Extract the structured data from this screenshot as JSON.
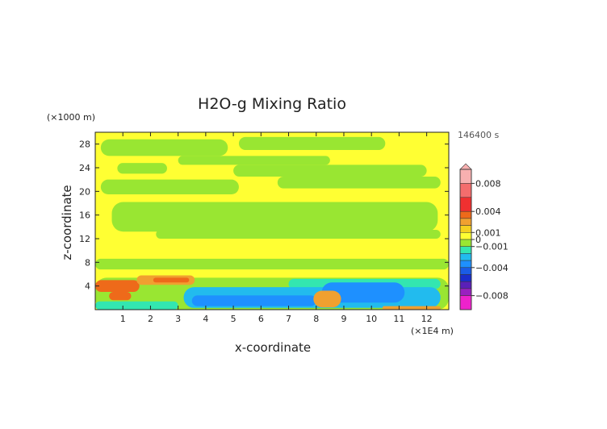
{
  "chart_data": {
    "type": "heatmap",
    "title": "H2O-g Mixing Ratio",
    "time_label": "146400 s",
    "xlabel": "x-coordinate",
    "ylabel": "z-coordinate",
    "x_unit": "(×1E4 m)",
    "y_unit": "(×1000 m)",
    "xlim": [
      0,
      12.8
    ],
    "ylim": [
      0,
      30
    ],
    "x_ticks": [
      1,
      2,
      3,
      4,
      5,
      6,
      7,
      8,
      9,
      10,
      11,
      12
    ],
    "y_ticks": [
      4,
      8,
      12,
      16,
      20,
      24,
      28
    ],
    "colorbar": {
      "range": [
        -0.01,
        0.01
      ],
      "tick_values": [
        0.008,
        0.004,
        0.001,
        0,
        -0.001,
        -0.004,
        -0.008
      ],
      "tick_labels": [
        "0.008",
        "0.004",
        "0.001",
        "0",
        "−0.001",
        "−0.004",
        "−0.008"
      ],
      "levels": [
        {
          "lo": 0.008,
          "hi": 0.01,
          "color": "#f7b0b0"
        },
        {
          "lo": 0.006,
          "hi": 0.008,
          "color": "#f46d6d"
        },
        {
          "lo": 0.004,
          "hi": 0.006,
          "color": "#f03030"
        },
        {
          "lo": 0.003,
          "hi": 0.004,
          "color": "#ee6a1a"
        },
        {
          "lo": 0.002,
          "hi": 0.003,
          "color": "#f0a030"
        },
        {
          "lo": 0.001,
          "hi": 0.002,
          "color": "#f5d020"
        },
        {
          "lo": 0.0,
          "hi": 0.001,
          "color": "#ffff33"
        },
        {
          "lo": -0.001,
          "hi": 0.0,
          "color": "#99e632"
        },
        {
          "lo": -0.002,
          "hi": -0.001,
          "color": "#33e6b0"
        },
        {
          "lo": -0.003,
          "hi": -0.002,
          "color": "#22bbee"
        },
        {
          "lo": -0.004,
          "hi": -0.003,
          "color": "#1e90ff"
        },
        {
          "lo": -0.005,
          "hi": -0.004,
          "color": "#1a5ce6"
        },
        {
          "lo": -0.006,
          "hi": -0.005,
          "color": "#1a2ecc"
        },
        {
          "lo": -0.007,
          "hi": -0.006,
          "color": "#5a20b8"
        },
        {
          "lo": -0.008,
          "hi": -0.007,
          "color": "#9a20c0"
        },
        {
          "lo": -0.01,
          "hi": -0.008,
          "color": "#ee22cc"
        }
      ]
    },
    "regions": [
      {
        "level": "#ffff33",
        "x": [
          0,
          12.8
        ],
        "z": [
          0,
          30
        ]
      },
      {
        "level": "#99e632",
        "x": [
          0.2,
          4.8
        ],
        "z": [
          26,
          28.8
        ]
      },
      {
        "level": "#99e632",
        "x": [
          5.2,
          10.5
        ],
        "z": [
          27,
          29.2
        ]
      },
      {
        "level": "#99e632",
        "x": [
          3.0,
          8.5
        ],
        "z": [
          24.5,
          26
        ]
      },
      {
        "level": "#99e632",
        "x": [
          0.8,
          2.6
        ],
        "z": [
          23,
          24.8
        ]
      },
      {
        "level": "#99e632",
        "x": [
          5.0,
          12.0
        ],
        "z": [
          22.5,
          24.5
        ]
      },
      {
        "level": "#99e632",
        "x": [
          0.2,
          5.2
        ],
        "z": [
          19.5,
          22
        ]
      },
      {
        "level": "#99e632",
        "x": [
          6.6,
          12.5
        ],
        "z": [
          20.5,
          22.5
        ]
      },
      {
        "level": "#99e632",
        "x": [
          0.6,
          12.4
        ],
        "z": [
          13.2,
          18.2
        ]
      },
      {
        "level": "#99e632",
        "x": [
          2.2,
          12.5
        ],
        "z": [
          12.0,
          13.5
        ]
      },
      {
        "level": "#99e632",
        "x": [
          0,
          12.8
        ],
        "z": [
          6.8,
          8.6
        ]
      },
      {
        "level": "#99e632",
        "x": [
          0,
          12.8
        ],
        "z": [
          0,
          5.4
        ]
      },
      {
        "level": "#33e6b0",
        "x": [
          7.0,
          12.5
        ],
        "z": [
          3.5,
          5.2
        ]
      },
      {
        "level": "#22bbee",
        "x": [
          3.2,
          12.5
        ],
        "z": [
          0.3,
          3.8
        ]
      },
      {
        "level": "#33e6b0",
        "x": [
          0,
          3.0
        ],
        "z": [
          0,
          1.4
        ]
      },
      {
        "level": "#1e90ff",
        "x": [
          8.2,
          11.2
        ],
        "z": [
          1.2,
          4.6
        ]
      },
      {
        "level": "#1e90ff",
        "x": [
          3.5,
          8.0
        ],
        "z": [
          0.6,
          2.4
        ]
      },
      {
        "level": "#ee6a1a",
        "x": [
          0,
          1.6
        ],
        "z": [
          3.0,
          5.0
        ]
      },
      {
        "level": "#f0a030",
        "x": [
          1.5,
          3.6
        ],
        "z": [
          4.2,
          5.8
        ]
      },
      {
        "level": "#ee6a1a",
        "x": [
          2.1,
          3.4
        ],
        "z": [
          4.6,
          5.4
        ]
      },
      {
        "level": "#ee6a1a",
        "x": [
          0.5,
          1.3
        ],
        "z": [
          1.6,
          3.0
        ]
      },
      {
        "level": "#f0a030",
        "x": [
          7.9,
          8.9
        ],
        "z": [
          0.4,
          3.2
        ]
      },
      {
        "level": "#f0a030",
        "x": [
          10.4,
          12.5
        ],
        "z": [
          0,
          0.6
        ]
      }
    ]
  }
}
